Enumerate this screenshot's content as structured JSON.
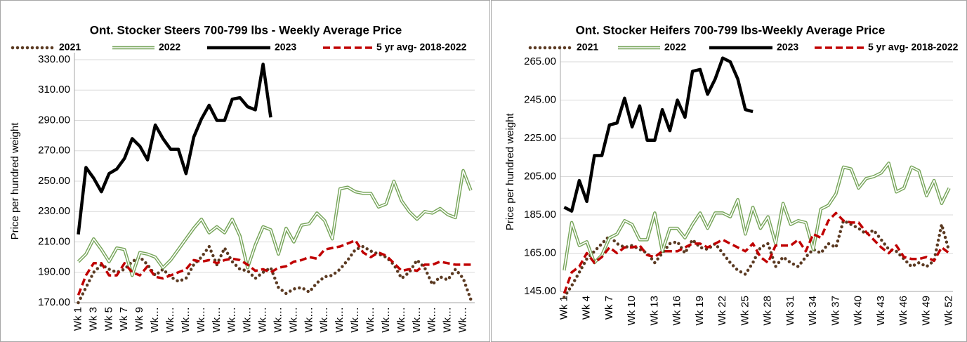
{
  "chart_data": [
    {
      "type": "line",
      "title": "Ont. Stocker Steers 700-799 lbs - Weekly Average Price",
      "y_label": "Price per hundred weight",
      "categories": [
        "Wk 1",
        null,
        "Wk 3",
        null,
        "Wk 5",
        null,
        "Wk 7",
        null,
        "Wk 9",
        null,
        "Wk…",
        null,
        "Wk…",
        null,
        "Wk…",
        null,
        "Wk…",
        null,
        "Wk…",
        null,
        "Wk…",
        null,
        "Wk…",
        null,
        "Wk…",
        null,
        "Wk…",
        null,
        "Wk…",
        null,
        "Wk…",
        null,
        "Wk…",
        null,
        "Wk…",
        null,
        "Wk…",
        null,
        "Wk…",
        null,
        "Wk…",
        null,
        "Wk…",
        null,
        "Wk…",
        null,
        "Wk…",
        null,
        "Wk…",
        null,
        "Wk…",
        null
      ],
      "ylim": [
        170,
        330
      ],
      "yticks": [
        {
          "value": 170,
          "label": "170.00"
        },
        {
          "value": 190,
          "label": "190.00"
        },
        {
          "value": 210,
          "label": "210.00"
        },
        {
          "value": 230,
          "label": "230.00"
        },
        {
          "value": 250,
          "label": "250.00"
        },
        {
          "value": 270,
          "label": "270.00"
        },
        {
          "value": 290,
          "label": "290.00"
        },
        {
          "value": 310,
          "label": "310.00"
        },
        {
          "value": 330,
          "label": "330.00"
        }
      ],
      "grid": true,
      "series": [
        {
          "name": "2021",
          "color": "#5b3a22",
          "style": "dotted",
          "values": [
            170,
            180,
            190,
            195,
            192,
            190,
            192,
            197,
            200,
            195,
            188,
            192,
            187,
            184,
            186,
            195,
            200,
            207,
            195,
            206,
            197,
            192,
            191,
            186,
            190,
            193,
            180,
            176,
            179,
            180,
            177,
            183,
            187,
            188,
            192,
            198,
            205,
            207,
            204,
            202,
            200,
            195,
            186,
            190,
            198,
            193,
            182,
            187,
            185,
            192,
            186,
            172
          ]
        },
        {
          "name": "2022",
          "color": "#77a55a",
          "style": "double",
          "values": [
            197,
            202,
            212,
            205,
            197,
            206,
            205,
            188,
            203,
            202,
            200,
            193,
            198,
            205,
            212,
            219,
            225,
            216,
            220,
            216,
            225,
            214,
            193,
            208,
            220,
            218,
            202,
            219,
            210,
            221,
            222,
            229,
            224,
            212,
            245,
            246,
            243,
            242,
            242,
            233,
            235,
            250,
            237,
            230,
            225,
            230,
            229,
            232,
            228,
            226,
            257,
            244
          ]
        },
        {
          "name": "2023",
          "color": "#000000",
          "style": "solid",
          "values": [
            215,
            259,
            252,
            243,
            255,
            258,
            265,
            278,
            273,
            264,
            287,
            278,
            271,
            271,
            255,
            279,
            291,
            300,
            290,
            290,
            304,
            305,
            299,
            297,
            327,
            292,
            null,
            null,
            null,
            null,
            null,
            null,
            null,
            null,
            null,
            null,
            null,
            null,
            null,
            null,
            null,
            null,
            null,
            null,
            null,
            null,
            null,
            null,
            null,
            null,
            null,
            null
          ]
        },
        {
          "name": "5 yr avg- 2018-2022",
          "color": "#c00000",
          "style": "dashed",
          "values": [
            175,
            188,
            196,
            196,
            188,
            188,
            196,
            190,
            188,
            194,
            187,
            186,
            188,
            190,
            192,
            198,
            197,
            198,
            196,
            198,
            199,
            198,
            195,
            191,
            192,
            190,
            193,
            194,
            197,
            198,
            200,
            199,
            205,
            206,
            207,
            209,
            211,
            203,
            200,
            203,
            201,
            196,
            191,
            192,
            191,
            195,
            195,
            197,
            196,
            195,
            195,
            195
          ]
        }
      ]
    },
    {
      "type": "line",
      "title": "Ont. Stocker Heifers 700-799 lbs-Weekly Average Price",
      "y_label": "Price per hundred weight",
      "categories": [
        "Wk 1",
        null,
        null,
        "Wk 4",
        null,
        null,
        "Wk 7",
        null,
        null,
        "Wk 10",
        null,
        null,
        "Wk 13",
        null,
        null,
        "Wk 16",
        null,
        null,
        "Wk 19",
        null,
        null,
        "Wk 22",
        null,
        null,
        "Wk 25",
        null,
        null,
        "Wk 28",
        null,
        null,
        "Wk 31",
        null,
        null,
        "Wk 34",
        null,
        null,
        "Wk 37",
        null,
        null,
        "Wk 40",
        null,
        null,
        "Wk 43",
        null,
        null,
        "Wk 46",
        null,
        null,
        "Wk 49",
        null,
        null,
        "Wk 52"
      ],
      "ylim": [
        145,
        270
      ],
      "yticks": [
        {
          "value": 145,
          "label": "145.00"
        },
        {
          "value": 165,
          "label": "165.00"
        },
        {
          "value": 185,
          "label": "185.00"
        },
        {
          "value": 205,
          "label": "205.00"
        },
        {
          "value": 225,
          "label": "225.00"
        },
        {
          "value": 245,
          "label": "245.00"
        },
        {
          "value": 265,
          "label": "265.00"
        }
      ],
      "grid": true,
      "series": [
        {
          "name": "2021",
          "color": "#5b3a22",
          "style": "dotted",
          "values": [
            142,
            148,
            155,
            162,
            166,
            170,
            174,
            170,
            168,
            169,
            167,
            165,
            160,
            165,
            170,
            171,
            165,
            172,
            168,
            167,
            170,
            165,
            160,
            156,
            154,
            160,
            168,
            170,
            158,
            163,
            160,
            158,
            163,
            167,
            165,
            170,
            168,
            182,
            180,
            178,
            175,
            177,
            172,
            167,
            166,
            162,
            158,
            160,
            158,
            161,
            180,
            166
          ]
        },
        {
          "name": "2022",
          "color": "#77a55a",
          "style": "double",
          "values": [
            156,
            181,
            169,
            171,
            160,
            164,
            173,
            175,
            182,
            180,
            172,
            172,
            186,
            166,
            178,
            178,
            173,
            180,
            186,
            178,
            186,
            186,
            184,
            193,
            175,
            189,
            178,
            184,
            170,
            191,
            180,
            182,
            181,
            167,
            188,
            190,
            196,
            210,
            209,
            199,
            204,
            205,
            207,
            212,
            197,
            199,
            210,
            208,
            195,
            203,
            191,
            199
          ]
        },
        {
          "name": "2023",
          "color": "#000000",
          "style": "solid",
          "values": [
            189,
            187,
            203,
            192,
            216,
            216,
            232,
            233,
            246,
            231,
            242,
            224,
            224,
            240,
            229,
            245,
            236,
            260,
            261,
            248,
            256,
            267,
            265,
            256,
            240,
            239,
            null,
            null,
            null,
            null,
            null,
            null,
            null,
            null,
            null,
            null,
            null,
            null,
            null,
            null,
            null,
            null,
            null,
            null,
            null,
            null,
            null,
            null,
            null,
            null,
            null,
            null
          ]
        },
        {
          "name": "5 yr avg- 2018-2022",
          "color": "#c00000",
          "style": "dashed",
          "values": [
            144,
            155,
            158,
            165,
            160,
            163,
            168,
            165,
            168,
            168,
            169,
            164,
            163,
            166,
            166,
            166,
            168,
            170,
            170,
            168,
            170,
            172,
            170,
            168,
            166,
            170,
            163,
            160,
            169,
            169,
            169,
            172,
            166,
            175,
            173,
            182,
            186,
            182,
            181,
            181,
            176,
            172,
            168,
            165,
            169,
            163,
            162,
            162,
            163,
            161,
            168,
            165
          ]
        }
      ]
    }
  ]
}
